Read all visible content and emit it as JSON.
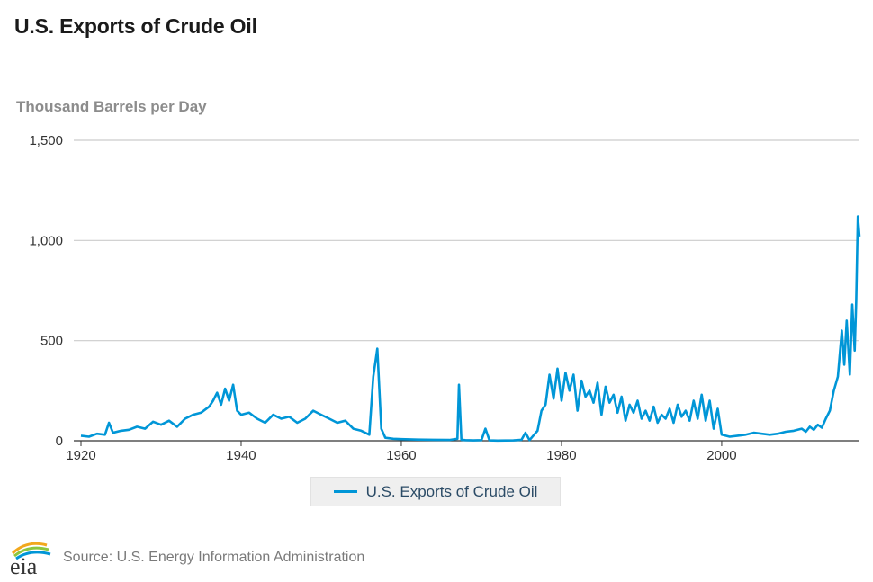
{
  "title": "U.S. Exports of Crude Oil",
  "units_label": "Thousand Barrels per Day",
  "source": "Source: U.S. Energy Information Administration",
  "logo": {
    "text": "eia",
    "icon": "eia-logo-icon"
  },
  "colors": {
    "series": "#0096d7",
    "grid": "#cccccc",
    "axis": "#333333"
  },
  "chart_data": {
    "type": "line",
    "title": "U.S. Exports of Crude Oil",
    "ylabel": "Thousand Barrels per Day",
    "xlim": [
      1920,
      2017.2
    ],
    "ylim": [
      0,
      1500
    ],
    "x_ticks": [
      1920,
      1940,
      1960,
      1980,
      2000
    ],
    "x_tick_labels": [
      "1920",
      "1940",
      "1960",
      "1980",
      "2000"
    ],
    "y_ticks": [
      0,
      500,
      1000,
      1500
    ],
    "y_tick_labels": [
      "0",
      "500",
      "1,000",
      "1,500"
    ],
    "grid": true,
    "legend": "bottom-center",
    "series": [
      {
        "name": "U.S. Exports of Crude Oil",
        "color": "#0096d7",
        "x": [
          1920,
          1921,
          1922,
          1923,
          1923.5,
          1924,
          1925,
          1926,
          1927,
          1928,
          1929,
          1930,
          1931,
          1932,
          1933,
          1934,
          1935,
          1936,
          1936.5,
          1937,
          1937.5,
          1938,
          1938.5,
          1939,
          1939.5,
          1940,
          1941,
          1942,
          1943,
          1944,
          1945,
          1946,
          1947,
          1948,
          1949,
          1950,
          1951,
          1952,
          1953,
          1954,
          1955,
          1956,
          1956.5,
          1957,
          1957.5,
          1958,
          1959,
          1960,
          1962,
          1964,
          1966,
          1967,
          1967.2,
          1967.5,
          1968,
          1969,
          1970,
          1970.5,
          1971,
          1972,
          1974,
          1975,
          1975.5,
          1976,
          1977,
          1977.5,
          1978,
          1978.5,
          1979,
          1979.5,
          1980,
          1980.5,
          1981,
          1981.5,
          1982,
          1982.5,
          1983,
          1983.5,
          1984,
          1984.5,
          1985,
          1985.5,
          1986,
          1986.5,
          1987,
          1987.5,
          1988,
          1988.5,
          1989,
          1989.5,
          1990,
          1990.5,
          1991,
          1991.5,
          1992,
          1992.5,
          1993,
          1993.5,
          1994,
          1994.5,
          1995,
          1995.5,
          1996,
          1996.5,
          1997,
          1997.5,
          1998,
          1998.5,
          1999,
          1999.5,
          2000,
          2001,
          2002,
          2003,
          2004,
          2005,
          2006,
          2007,
          2008,
          2009,
          2010,
          2010.5,
          2011,
          2011.5,
          2012,
          2012.5,
          2013,
          2013.5,
          2014,
          2014.5,
          2015,
          2015.3,
          2015.6,
          2016,
          2016.3,
          2016.6,
          2016.8,
          2017,
          2017.2
        ],
        "y": [
          25,
          20,
          35,
          30,
          90,
          40,
          50,
          55,
          70,
          60,
          95,
          80,
          100,
          70,
          110,
          130,
          140,
          170,
          200,
          240,
          180,
          260,
          200,
          280,
          150,
          130,
          140,
          110,
          90,
          130,
          110,
          120,
          90,
          110,
          150,
          130,
          110,
          90,
          100,
          60,
          50,
          30,
          320,
          460,
          60,
          15,
          10,
          8,
          6,
          5,
          4,
          10,
          280,
          5,
          3,
          2,
          3,
          60,
          2,
          1,
          2,
          5,
          40,
          3,
          50,
          150,
          180,
          330,
          210,
          360,
          200,
          340,
          250,
          330,
          150,
          300,
          220,
          250,
          190,
          290,
          130,
          270,
          190,
          230,
          140,
          220,
          100,
          180,
          140,
          200,
          110,
          150,
          100,
          170,
          90,
          130,
          110,
          160,
          90,
          180,
          120,
          150,
          100,
          200,
          110,
          230,
          100,
          200,
          60,
          160,
          30,
          20,
          25,
          30,
          40,
          35,
          30,
          35,
          45,
          50,
          60,
          45,
          70,
          55,
          80,
          65,
          110,
          150,
          250,
          320,
          550,
          380,
          600,
          330,
          680,
          450,
          700,
          1120,
          1020
        ]
      }
    ]
  }
}
